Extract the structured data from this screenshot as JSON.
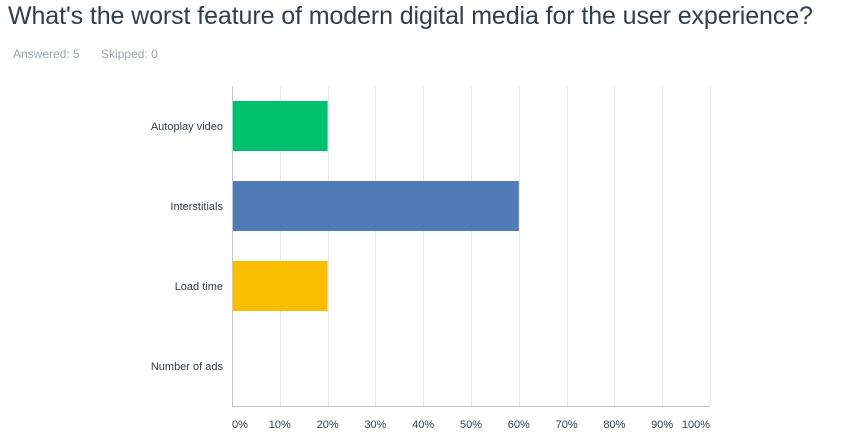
{
  "question": {
    "title": "What's the worst feature of modern digital media for the user experience?",
    "answered": "Answered: 5",
    "skipped": "Skipped: 0"
  },
  "colors": {
    "text": "#333e48",
    "muted": "#9da5ac",
    "grid": "#e6e9eb",
    "axis": "#c4c9cd"
  },
  "chart_data": {
    "type": "bar",
    "orientation": "horizontal",
    "categories": [
      "Autoplay video",
      "Interstitials",
      "Load time",
      "Number of ads"
    ],
    "values": [
      20,
      60,
      20,
      0
    ],
    "bar_colors": [
      "#00bf6f",
      "#507cb6",
      "#f9be00",
      "#6bc8cd"
    ],
    "xlim": [
      0,
      100
    ],
    "xticks": [
      "0%",
      "10%",
      "20%",
      "30%",
      "40%",
      "50%",
      "60%",
      "70%",
      "80%",
      "90%",
      "100%"
    ],
    "grid": true,
    "legend": "none"
  }
}
